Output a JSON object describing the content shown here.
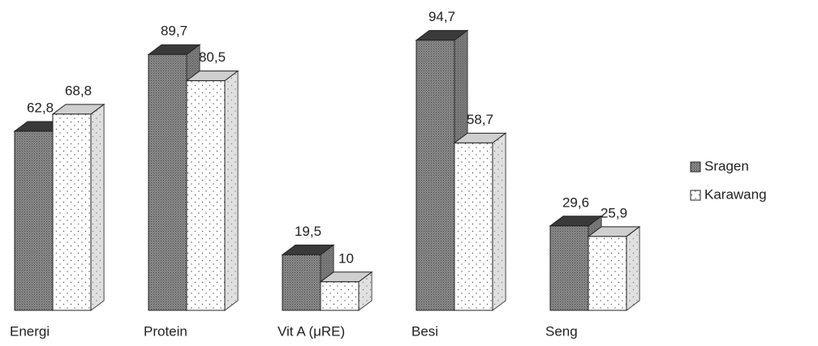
{
  "chart_data": {
    "type": "bar3d",
    "categories": [
      "Energi",
      "Protein",
      "Vit A (μRE)",
      "Besi",
      "Seng"
    ],
    "series": [
      {
        "name": "Sragen",
        "color": "#8c8c8c",
        "values": [
          62.8,
          89.7,
          19.5,
          94.7,
          29.6
        ],
        "value_labels": [
          "62,8",
          "89,7",
          "19,5",
          "94,7",
          "29,6"
        ]
      },
      {
        "name": "Karawang",
        "color": "#ffffff",
        "values": [
          68.8,
          80.5,
          10,
          58.7,
          25.9
        ],
        "value_labels": [
          "68,8",
          "80,5",
          "10",
          "58,7",
          "25,9"
        ]
      }
    ],
    "legend": "right"
  }
}
